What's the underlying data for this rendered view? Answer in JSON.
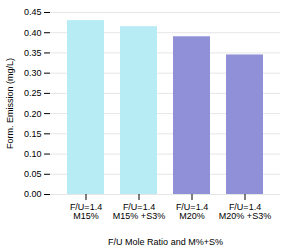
{
  "chart_data": {
    "type": "bar",
    "categories": [
      "F/U=1.4\nM15%",
      "F/U=1.4\nM15% +S3%",
      "F/U=1.4\nM20%",
      "F/U=1.4\nM20% +S3%"
    ],
    "values": [
      0.43,
      0.415,
      0.39,
      0.345
    ],
    "colors": [
      "#b8ecf4",
      "#b8ecf4",
      "#9090d8",
      "#9090d8"
    ],
    "xlabel": "F/U Mole Ratio and M%+S%",
    "ylabel": "Form. Emission (mg/L)",
    "ylim": [
      0.0,
      0.45
    ],
    "yticks": [
      {
        "value": 0.0,
        "label": "0.00"
      },
      0.05,
      {
        "value": 0.1,
        "label": "0.10"
      },
      0.15,
      {
        "value": 0.2,
        "label": "0.20"
      },
      0.25,
      {
        "value": 0.3,
        "label": "0.30"
      },
      0.35,
      {
        "value": 0.4,
        "label": "0.40"
      },
      0.45
    ],
    "grid": true
  }
}
